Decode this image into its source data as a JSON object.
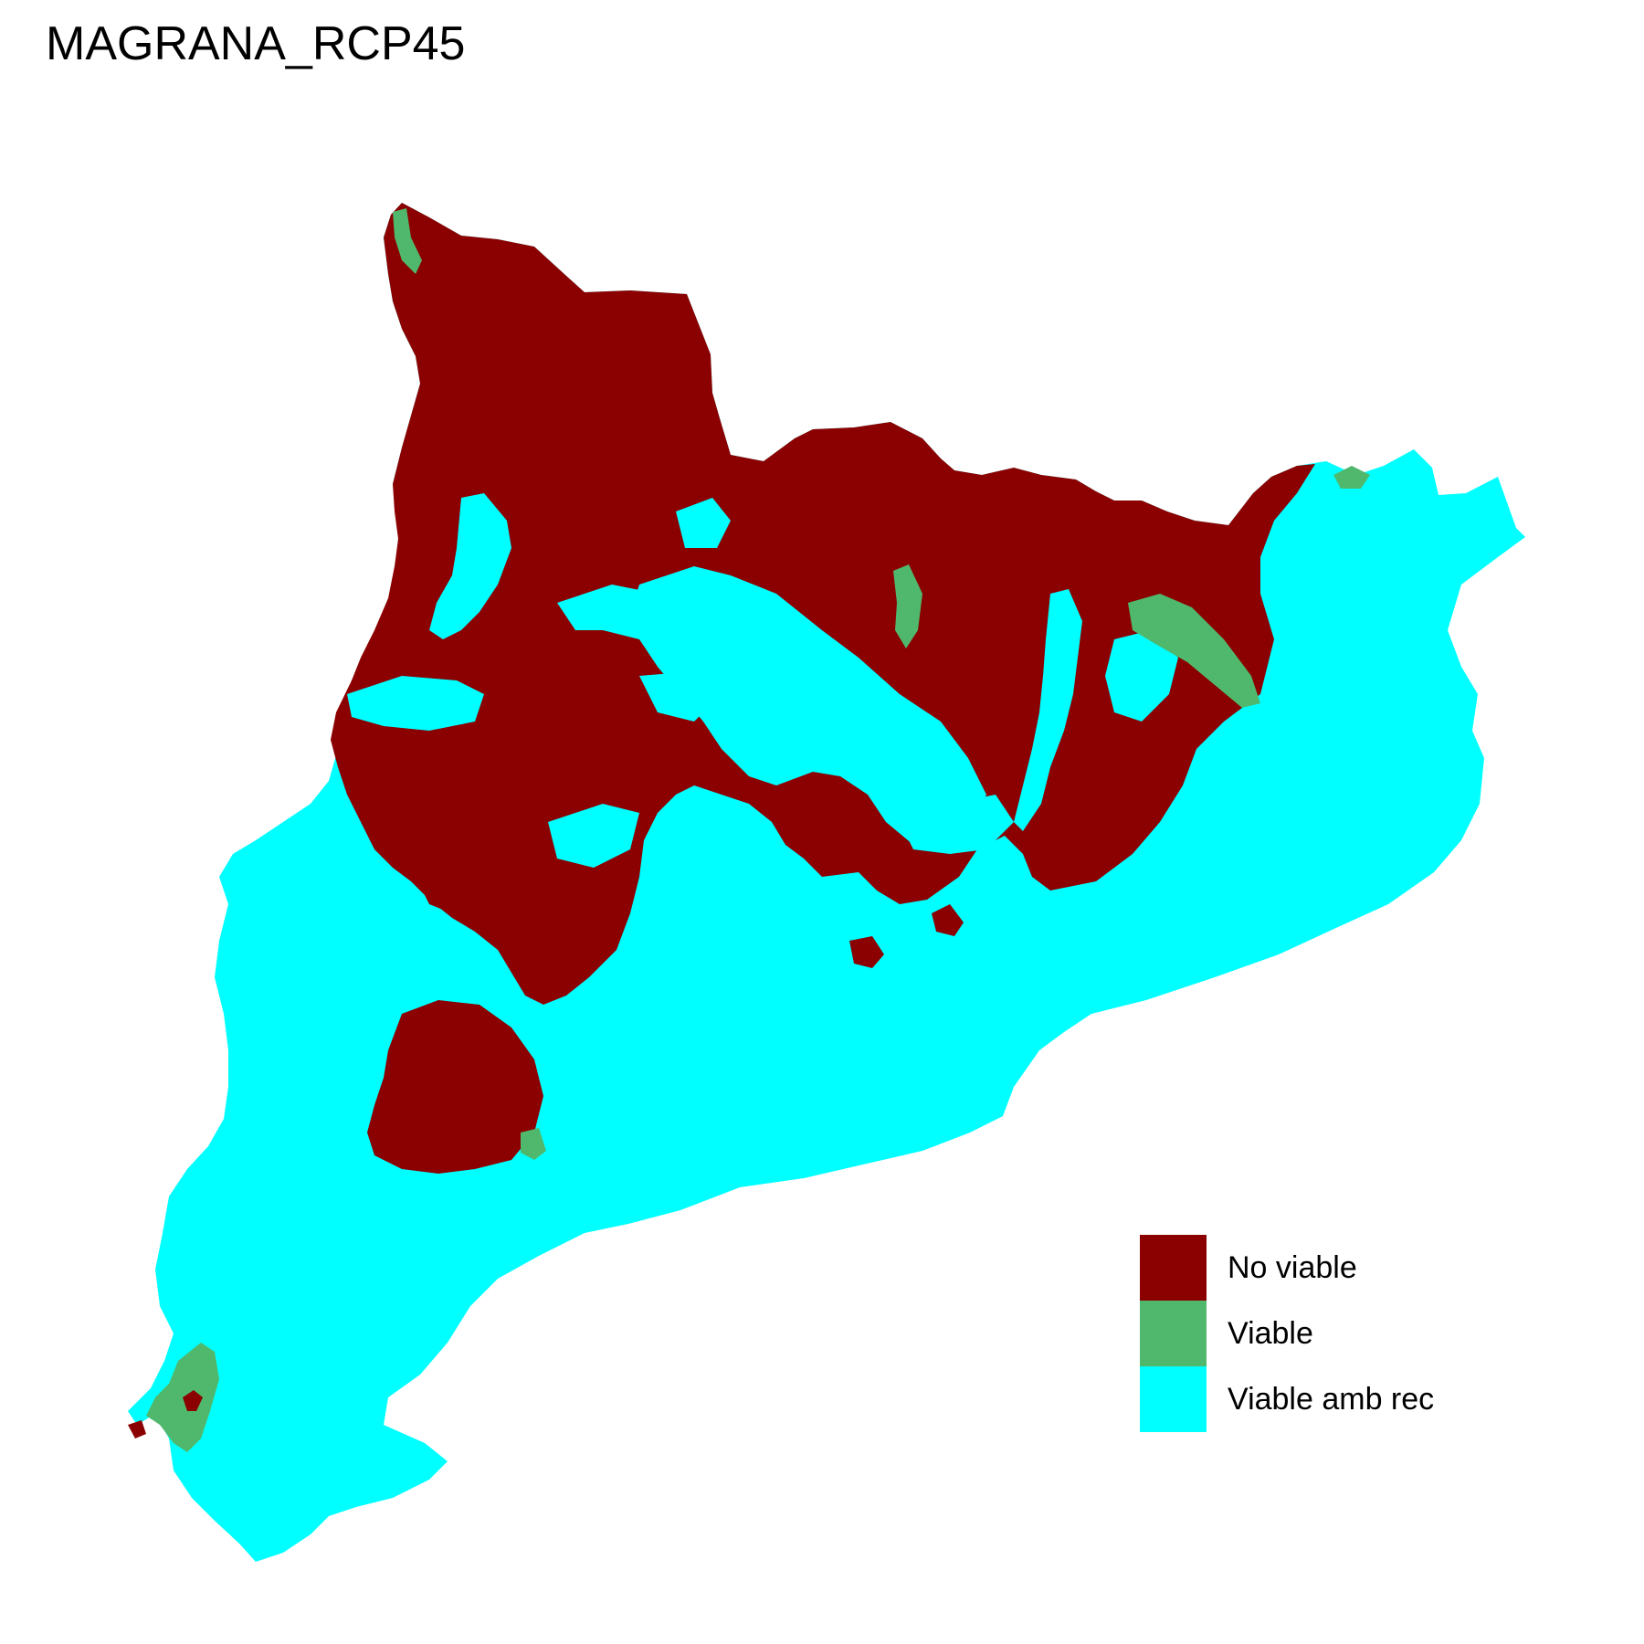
{
  "title": "MAGRANA_RCP45",
  "legend": {
    "items": [
      {
        "label": "No viable",
        "color": "#8B0000"
      },
      {
        "label": "Viable",
        "color": "#50B86C"
      },
      {
        "label": "Viable amb rec",
        "color": "#00FFFF"
      }
    ]
  }
}
